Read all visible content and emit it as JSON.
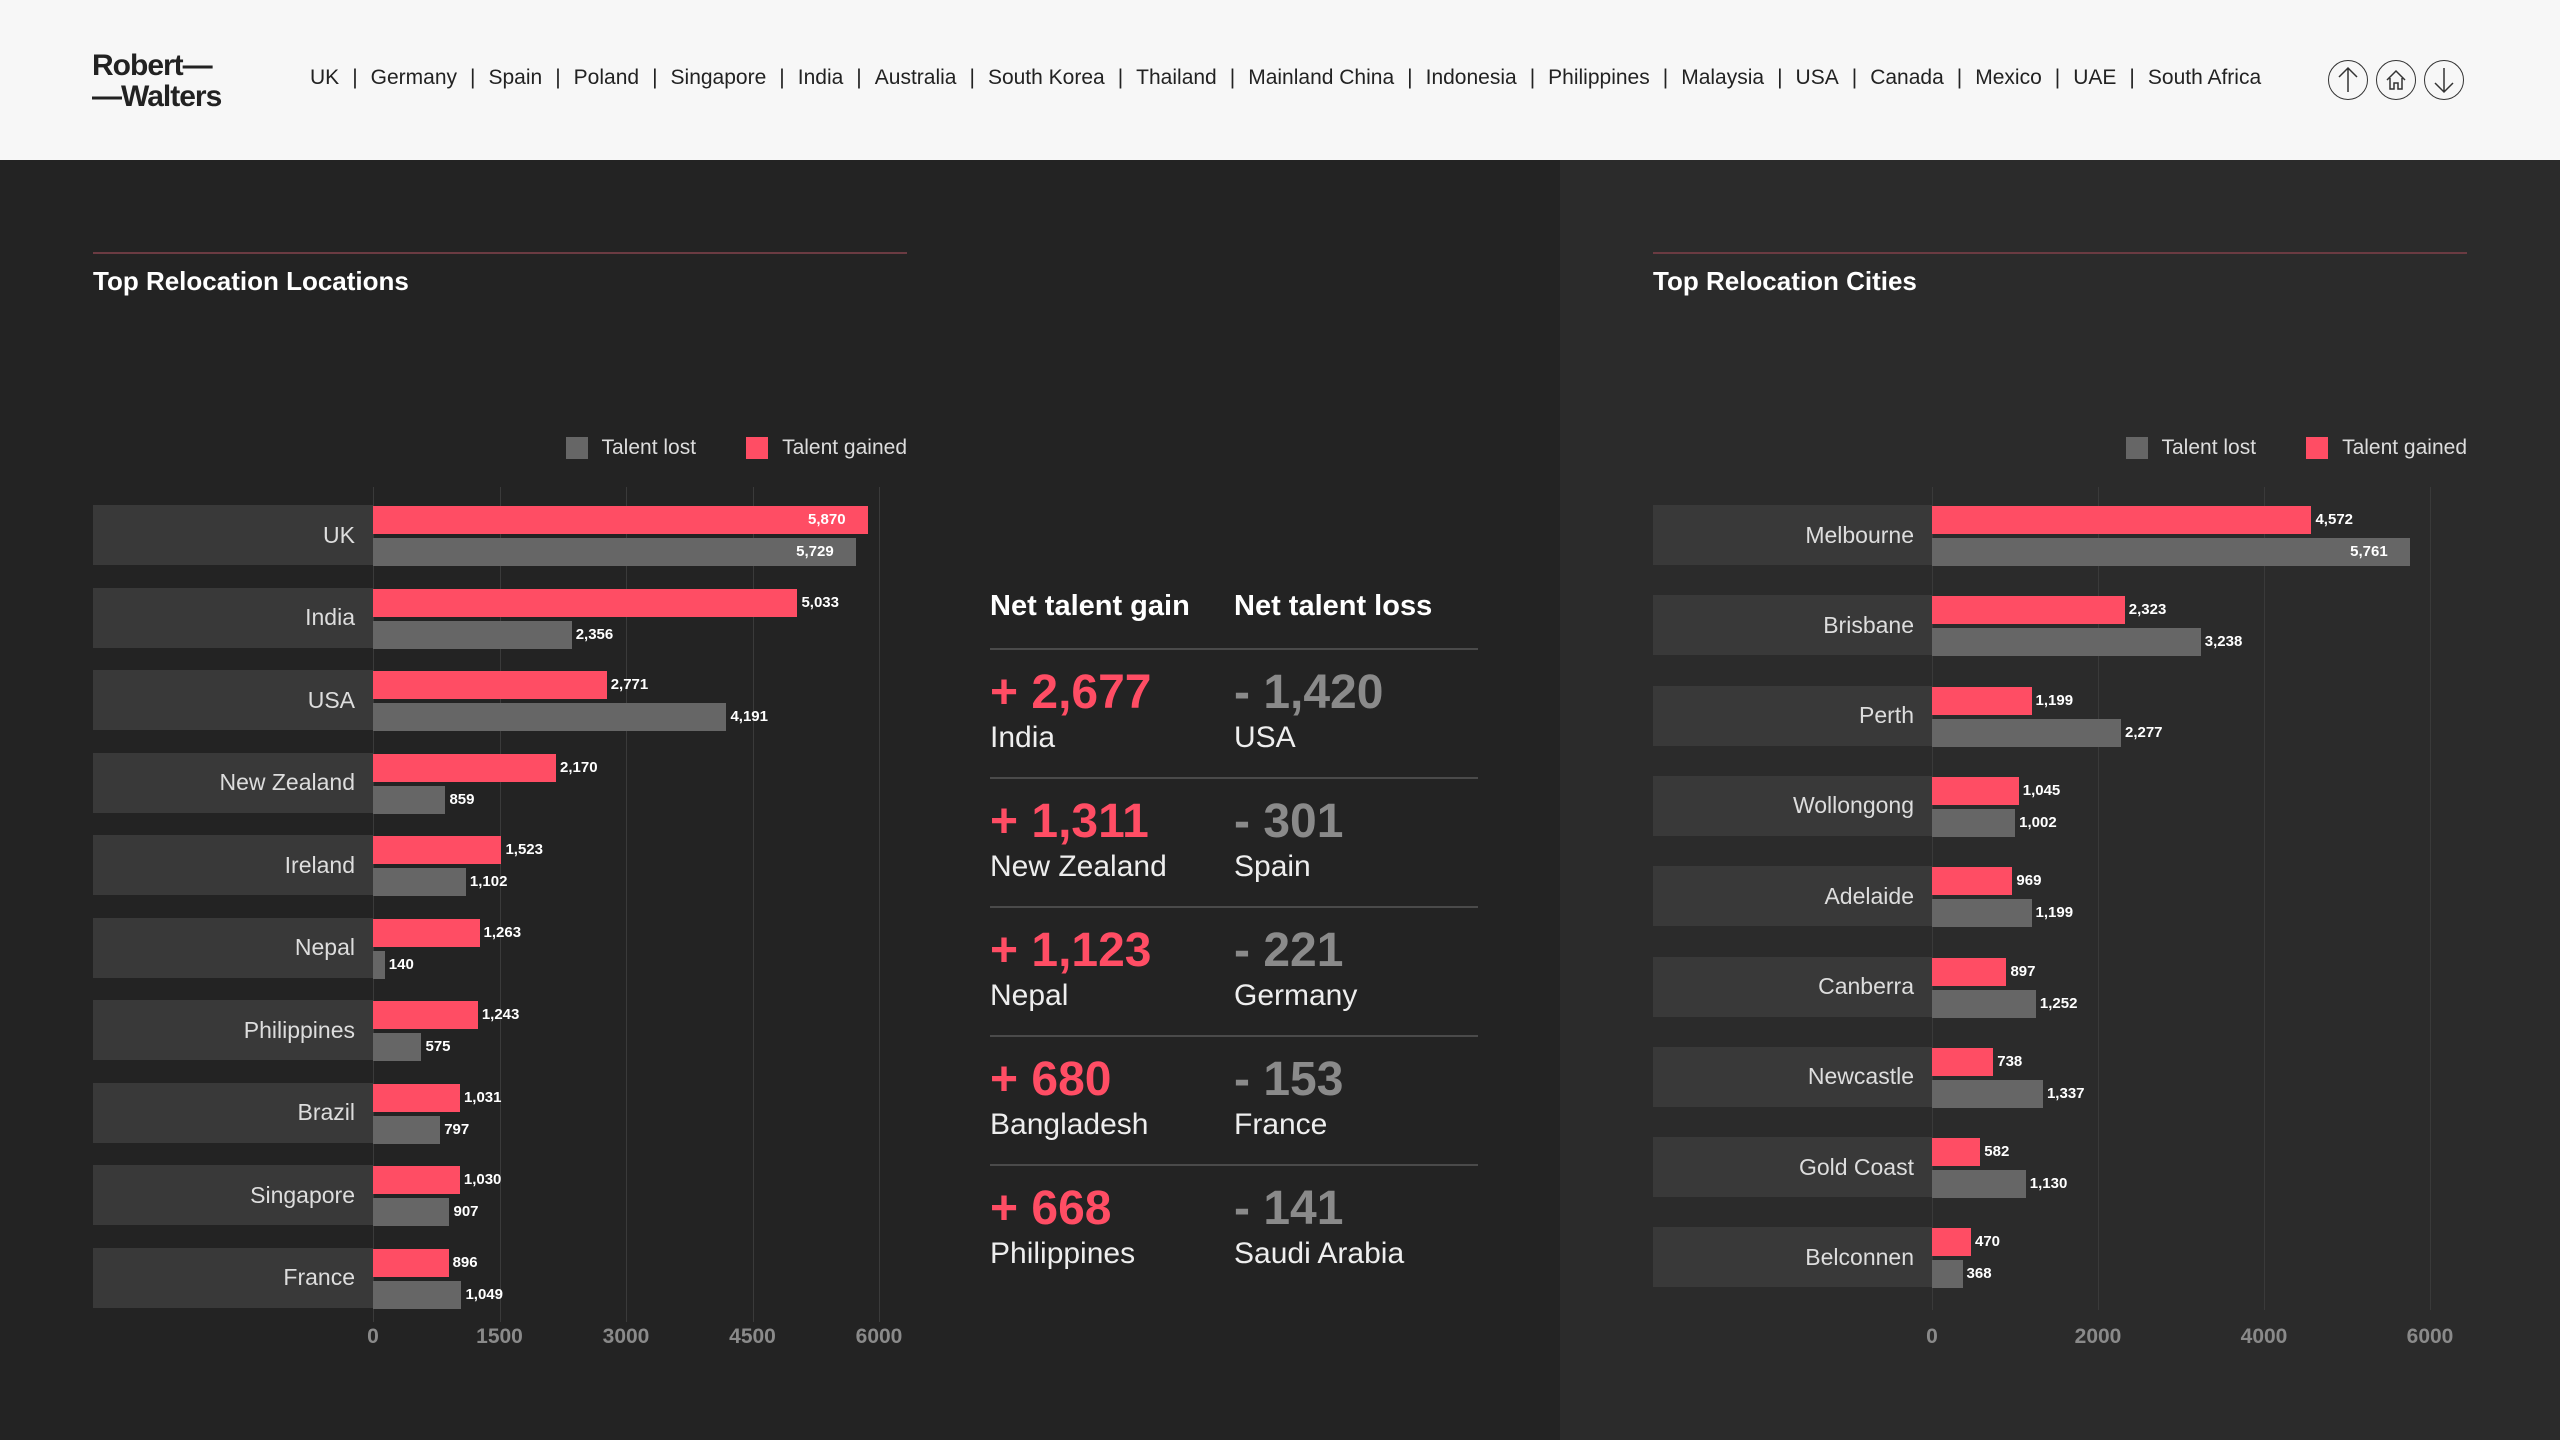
{
  "header": {
    "logo": "Robert— —Walters",
    "nav": [
      "UK",
      "Germany",
      "Spain",
      "Poland",
      "Singapore",
      "India",
      "Australia",
      "South Korea",
      "Thailand",
      "Mainland China",
      "Indonesia",
      "Philippines",
      "Malaysia",
      "USA",
      "Canada",
      "Mexico",
      "UAE",
      "South Africa"
    ],
    "icons": [
      "arrow-up-icon",
      "home-icon",
      "arrow-down-icon"
    ]
  },
  "colors": {
    "gained": "#ff4d64",
    "lost": "#666666"
  },
  "net": {
    "gain_header": "Net talent gain",
    "loss_header": "Net talent loss",
    "rows": [
      {
        "gain": "+ 2,677",
        "gain_name": "India",
        "loss": "- 1,420",
        "loss_name": "USA"
      },
      {
        "gain": "+ 1,311",
        "gain_name": "New Zealand",
        "loss": "- 301",
        "loss_name": "Spain"
      },
      {
        "gain": "+ 1,123",
        "gain_name": "Nepal",
        "loss": "- 221",
        "loss_name": "Germany"
      },
      {
        "gain": "+ 680",
        "gain_name": "Bangladesh",
        "loss": "- 153",
        "loss_name": "France"
      },
      {
        "gain": "+ 668",
        "gain_name": "Philippines",
        "loss": "- 141",
        "loss_name": "Saudi Arabia"
      }
    ]
  },
  "chart_data": [
    {
      "type": "bar",
      "title": "Top Relocation Locations",
      "legend": [
        "Talent lost",
        "Talent gained"
      ],
      "legend_position": "top-right",
      "xlim": [
        0,
        6000
      ],
      "xticks": [
        0,
        1500,
        3000,
        4500,
        6000
      ],
      "categories": [
        "UK",
        "India",
        "USA",
        "New Zealand",
        "Ireland",
        "Nepal",
        "Philippines",
        "Brazil",
        "Singapore",
        "France"
      ],
      "series": [
        {
          "name": "Talent gained",
          "values": [
            5870,
            5033,
            2771,
            2170,
            1523,
            1263,
            1243,
            1031,
            1030,
            896
          ]
        },
        {
          "name": "Talent lost",
          "values": [
            5729,
            2356,
            4191,
            859,
            1102,
            140,
            575,
            797,
            907,
            1049
          ]
        }
      ]
    },
    {
      "type": "bar",
      "title": "Top Relocation Cities",
      "legend": [
        "Talent lost",
        "Talent gained"
      ],
      "legend_position": "top-right",
      "xlim": [
        0,
        6000
      ],
      "xticks": [
        0,
        2000,
        4000,
        6000
      ],
      "categories": [
        "Melbourne",
        "Brisbane",
        "Perth",
        "Wollongong",
        "Adelaide",
        "Canberra",
        "Newcastle",
        "Gold Coast",
        "Belconnen"
      ],
      "series": [
        {
          "name": "Talent gained",
          "values": [
            4572,
            2323,
            1199,
            1045,
            969,
            897,
            738,
            582,
            470
          ]
        },
        {
          "name": "Talent lost",
          "values": [
            5761,
            3238,
            2277,
            1002,
            1199,
            1252,
            1337,
            1130,
            368
          ]
        }
      ]
    }
  ]
}
